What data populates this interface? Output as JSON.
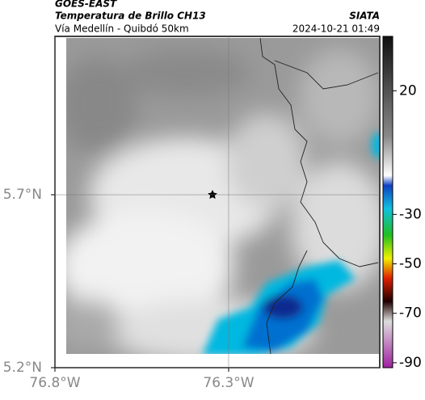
{
  "header": {
    "source": "GOES-EAST",
    "product": "Temperatura de Brillo CH13",
    "route": "Vía Medellín - Quibdó 50km",
    "agency": "SIATA",
    "timestamp": "2024-10-21 01:49"
  },
  "map": {
    "lonlim": [
      -76.8,
      -75.865
    ],
    "latlim": [
      5.2,
      6.158
    ],
    "xticks": [
      {
        "value": -76.8,
        "label": "76.8°W"
      },
      {
        "value": -76.3,
        "label": "76.3°W"
      }
    ],
    "yticks": [
      {
        "value": 5.7,
        "label": "5.7°N"
      },
      {
        "value": 5.2,
        "label": "5.2°N"
      }
    ],
    "grid": true
  },
  "colorbar": {
    "lim": [
      -92,
      42
    ],
    "ticks": [
      20,
      -30,
      -50,
      -70,
      -90
    ]
  }
}
